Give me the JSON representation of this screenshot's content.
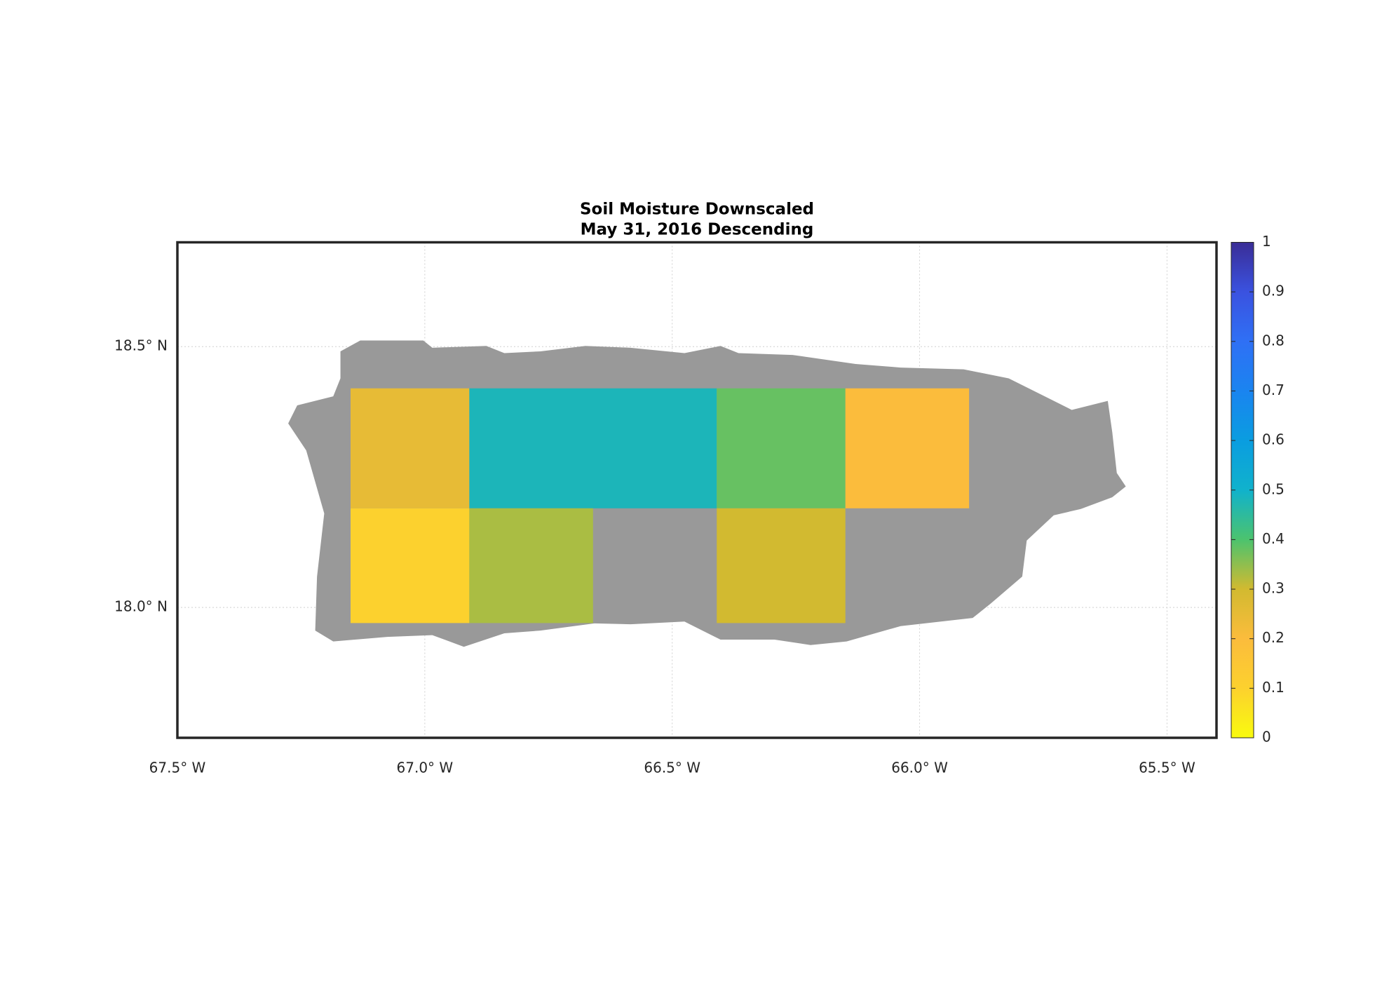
{
  "chart_data": {
    "type": "map",
    "title": [
      "Soil Moisture Downscaled",
      "May 31, 2016 Descending"
    ],
    "xlim": [
      -67.5,
      -65.4
    ],
    "ylim": [
      17.75,
      18.7
    ],
    "xticks": [
      {
        "value": -67.5,
        "label": "67.5° W"
      },
      {
        "value": -67.0,
        "label": "67.0° W"
      },
      {
        "value": -66.5,
        "label": "66.5° W"
      },
      {
        "value": -66.0,
        "label": "66.0° W"
      },
      {
        "value": -65.5,
        "label": "65.5° W"
      }
    ],
    "yticks": [
      {
        "value": 18.0,
        "label": "18.0° N"
      },
      {
        "value": 18.5,
        "label": "18.5° N"
      }
    ],
    "grid": true,
    "land_color": "#999999",
    "clim": [
      0,
      1
    ],
    "cticks": [
      0,
      0.1,
      0.2,
      0.3,
      0.4,
      0.5,
      0.6,
      0.7,
      0.8,
      0.9,
      1
    ],
    "colormap": [
      "#f9fb0e",
      "#fcd12e",
      "#fbbc3c",
      "#d2ba30",
      "#4cc36e",
      "#10b2cc",
      "#0a9de0",
      "#1a84f0",
      "#2f70f5",
      "#3a52e0",
      "#3a2d96"
    ],
    "tiles": [
      {
        "lon": [
          -67.15,
          -66.91
        ],
        "lat": [
          18.19,
          18.42
        ],
        "value": 0.25
      },
      {
        "lon": [
          -66.91,
          -66.41
        ],
        "lat": [
          18.19,
          18.42
        ],
        "value": 0.48
      },
      {
        "lon": [
          -66.41,
          -66.15
        ],
        "lat": [
          18.19,
          18.42
        ],
        "value": 0.38
      },
      {
        "lon": [
          -66.15,
          -65.9
        ],
        "lat": [
          18.19,
          18.42
        ],
        "value": 0.2
      },
      {
        "lon": [
          -67.15,
          -66.91
        ],
        "lat": [
          17.97,
          18.19
        ],
        "value": 0.1
      },
      {
        "lon": [
          -66.91,
          -66.66
        ],
        "lat": [
          17.97,
          18.19
        ],
        "value": 0.33
      },
      {
        "lon": [
          -66.41,
          -66.15
        ],
        "lat": [
          17.97,
          18.19
        ],
        "value": 0.3
      }
    ]
  }
}
